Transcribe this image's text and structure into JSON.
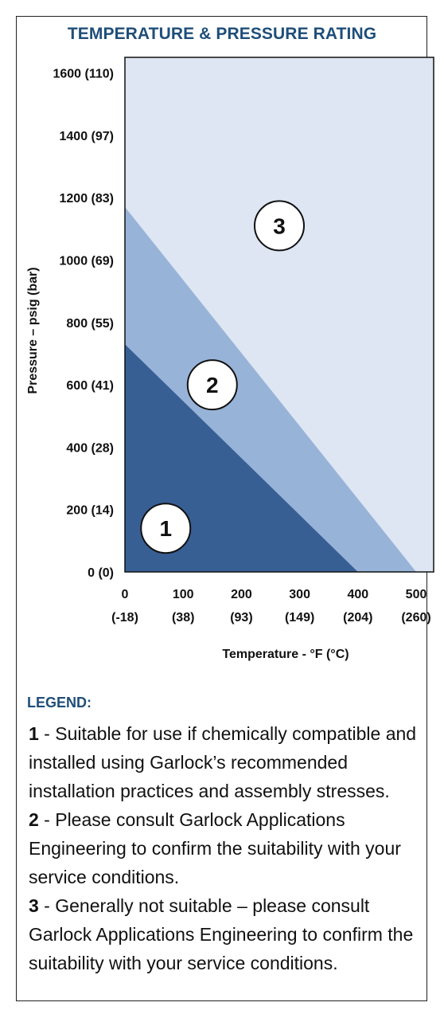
{
  "chart_data": {
    "type": "area",
    "title": "TEMPERATURE & PRESSURE RATING",
    "xlabel": "Temperature - °F (°C)",
    "ylabel": "Pressure – psig (bar)",
    "xlim": [
      0,
      530
    ],
    "ylim": [
      0,
      1650
    ],
    "x_ticks": [
      {
        "value": 0,
        "label": "0",
        "sublabel": "(-18)"
      },
      {
        "value": 100,
        "label": "100",
        "sublabel": "(38)"
      },
      {
        "value": 200,
        "label": "200",
        "sublabel": "(93)"
      },
      {
        "value": 300,
        "label": "300",
        "sublabel": "(149)"
      },
      {
        "value": 400,
        "label": "400",
        "sublabel": "(204)"
      },
      {
        "value": 500,
        "label": "500",
        "sublabel": "(260)"
      }
    ],
    "y_ticks": [
      {
        "value": 0,
        "label": "0 (0)"
      },
      {
        "value": 200,
        "label": "200 (14)"
      },
      {
        "value": 400,
        "label": "400 (28)"
      },
      {
        "value": 600,
        "label": "600 (41)"
      },
      {
        "value": 800,
        "label": "800 (55)"
      },
      {
        "value": 1000,
        "label": "1000 (69)"
      },
      {
        "value": 1200,
        "label": "1200 (83)"
      },
      {
        "value": 1400,
        "label": "1400 (97)"
      },
      {
        "value": 1600,
        "label": "1600 (110)"
      }
    ],
    "zones": [
      {
        "label": "1",
        "color": "#375f94",
        "boundary": [
          [
            0,
            730
          ],
          [
            400,
            0
          ]
        ],
        "label_at": [
          70,
          140
        ]
      },
      {
        "label": "2",
        "color": "#98b3d8",
        "boundary": [
          [
            0,
            1170
          ],
          [
            500,
            0
          ]
        ],
        "label_at": [
          150,
          600
        ]
      },
      {
        "label": "3",
        "color": "#dde6f2",
        "label_at": [
          265,
          1110
        ]
      }
    ],
    "grid": false,
    "legend_placement": "bottom"
  },
  "legend": {
    "title": "LEGEND:",
    "items": [
      {
        "number": "1",
        "text": " - Suitable for use if chemically compatible and installed using Garlock’s recommended installation practices and assembly stresses."
      },
      {
        "number": "2",
        "text": " - Please consult Garlock Applications Engineering to confirm the suitability with your service conditions."
      },
      {
        "number": "3",
        "text": " - Generally not suitable – please consult Garlock Applications Engineering to confirm the suitability with your service conditions."
      }
    ]
  },
  "colors": {
    "title": "#1f4e79",
    "zone1": "#375f94",
    "zone2": "#98b3d8",
    "zone3": "#dde6f2",
    "axis": "#111111"
  }
}
